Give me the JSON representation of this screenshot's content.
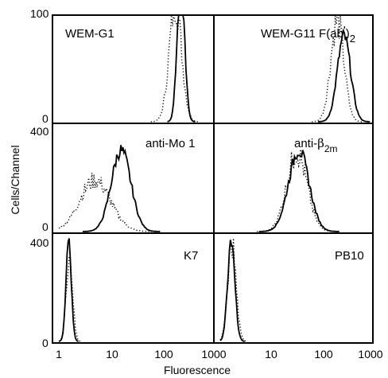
{
  "chart_data": {
    "type": "histogram-panels",
    "ylabel": "Cells/Channel",
    "xlabel": "Fluorescence",
    "x_scale": "log",
    "x_ticks": [
      "1",
      "10",
      "100",
      "1000"
    ],
    "x_ticks_right": [
      "10",
      "100",
      "1000"
    ],
    "panels": [
      {
        "label": "WEM-G1",
        "row": 0,
        "col": 0,
        "ylim": [
          0,
          100
        ],
        "y_ticks": [
          "100",
          "0"
        ],
        "solid": {
          "peak_x": 230,
          "width": 0.07,
          "height": 140
        },
        "dotted": {
          "peak_x": 180,
          "width": 0.12,
          "height": 110
        }
      },
      {
        "label_parts": [
          "WEM-G11 F(ab",
          "'",
          ")",
          "2"
        ],
        "row": 0,
        "col": 1,
        "ylim": [
          0,
          100
        ],
        "solid": {
          "peak_x": 270,
          "width": 0.13,
          "height": 80
        },
        "dotted": {
          "peak_x": 200,
          "width": 0.13,
          "height": 95
        }
      },
      {
        "label": "anti-Mo 1",
        "row": 1,
        "col": 0,
        "ylim": [
          0,
          400
        ],
        "y_ticks": [
          "400",
          "0"
        ],
        "solid": {
          "peak_x": 16,
          "width": 0.19,
          "height": 300
        },
        "dotted": {
          "peak_x": 5,
          "width": 0.3,
          "height": 190
        }
      },
      {
        "label_parts": [
          "anti-",
          "β",
          "2m"
        ],
        "row": 1,
        "col": 1,
        "ylim": [
          0,
          400
        ],
        "solid": {
          "peak_x": 35,
          "width": 0.2,
          "height": 300
        },
        "dotted": {
          "peak_x": 32,
          "width": 0.2,
          "height": 290
        }
      },
      {
        "label": "K7",
        "row": 2,
        "col": 0,
        "ylim": [
          0,
          400
        ],
        "y_ticks": [
          "400",
          "0"
        ],
        "solid": {
          "peak_x": 1.55,
          "width": 0.05,
          "height": 390
        },
        "dotted": {
          "peak_x": 1.6,
          "width": 0.06,
          "height": 330
        }
      },
      {
        "label": "PB10",
        "row": 2,
        "col": 1,
        "ylim": [
          0,
          400
        ],
        "solid": {
          "peak_x": 1.65,
          "width": 0.07,
          "height": 390
        },
        "dotted": {
          "peak_x": 1.7,
          "width": 0.08,
          "height": 360
        }
      }
    ]
  }
}
